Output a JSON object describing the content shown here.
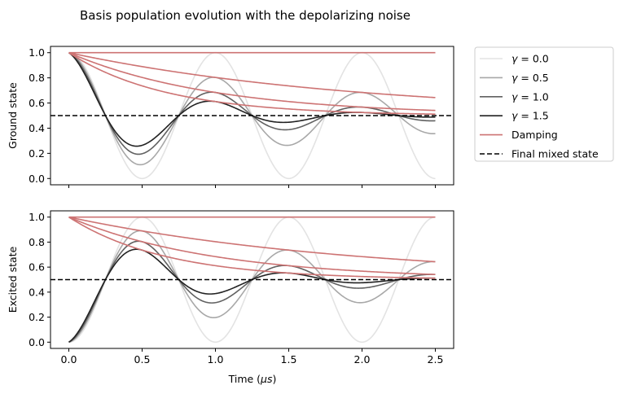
{
  "chart_data": {
    "type": "line",
    "title": "Basis population evolution with the depolarizing noise",
    "xlabel": "Time (μs)",
    "xlabel_parts": {
      "prefix": "Time (",
      "symbol": "μs",
      "suffix": ")"
    },
    "xlim": [
      -0.125,
      2.625
    ],
    "xticks": [
      0.0,
      0.5,
      1.0,
      1.5,
      2.0,
      2.5
    ],
    "xtick_labels": [
      "0.0",
      "0.5",
      "1.0",
      "1.5",
      "2.0",
      "2.5"
    ],
    "subplots": [
      {
        "ylabel": "Ground state",
        "ylim": [
          -0.05,
          1.05
        ],
        "yticks": [
          0.0,
          0.2,
          0.4,
          0.6,
          0.8,
          1.0
        ],
        "ytick_labels": [
          "0.0",
          "0.2",
          "0.4",
          "0.6",
          "0.8",
          "1.0"
        ],
        "state": "ground"
      },
      {
        "ylabel": "Excited state",
        "ylim": [
          -0.05,
          1.05
        ],
        "yticks": [
          0.0,
          0.2,
          0.4,
          0.6,
          0.8,
          1.0
        ],
        "ytick_labels": [
          "0.0",
          "0.2",
          "0.4",
          "0.6",
          "0.8",
          "1.0"
        ],
        "state": "excited"
      }
    ],
    "model": {
      "t_range": [
        0.0,
        2.5
      ],
      "rabi_angular_frequency": 6.2832,
      "gammas": [
        0.0,
        0.5,
        1.0,
        1.5
      ],
      "damping_envelope": "0.5 + 0.5*exp(-gamma*t)",
      "final_mixed_state": 0.5
    },
    "series": [
      {
        "name": "γ = 0.0",
        "symbol": "γ",
        "value_label": " = 0.0",
        "gamma": 0.0,
        "color": "#e3e3e3"
      },
      {
        "name": "γ = 0.5",
        "symbol": "γ",
        "value_label": " = 0.5",
        "gamma": 0.5,
        "color": "#a8a8a8"
      },
      {
        "name": "γ = 1.0",
        "symbol": "γ",
        "value_label": " = 1.0",
        "gamma": 1.0,
        "color": "#616161"
      },
      {
        "name": "γ = 1.5",
        "symbol": "γ",
        "value_label": " = 1.5",
        "gamma": 1.5,
        "color": "#222222"
      }
    ],
    "damping": {
      "name": "Damping",
      "color": "#cd7373"
    },
    "final_state": {
      "name": "Final mixed state",
      "value": 0.5,
      "color": "#000000",
      "style": "dashed"
    },
    "legend_placement": "outside-right-top",
    "grid": false
  }
}
